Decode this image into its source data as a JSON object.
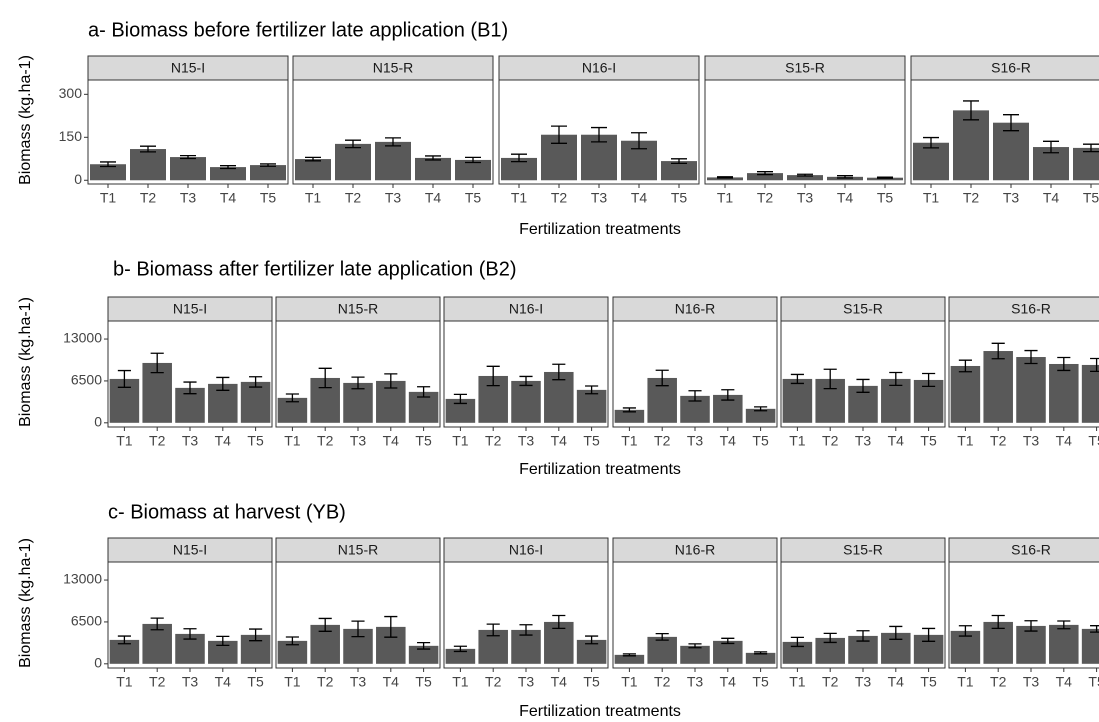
{
  "chart_data": [
    {
      "type": "bar",
      "title": "a- Biomass before fertilizer late application (B1)",
      "y_label": "Biomass (kg.ha-1)",
      "x_label": "Fertilization treatments",
      "color": "#595959",
      "ylim": [
        -13,
        350
      ],
      "yticks": [
        0,
        150,
        300
      ],
      "panels": [
        {
          "name": "N15-I",
          "categories": [
            "T1",
            "T2",
            "T3",
            "T4",
            "T5"
          ],
          "values": [
            56,
            109,
            81,
            46,
            53
          ],
          "errors": [
            8,
            10,
            5,
            5,
            4
          ]
        },
        {
          "name": "N15-R",
          "categories": [
            "T1",
            "T2",
            "T3",
            "T4",
            "T5"
          ],
          "values": [
            74,
            127,
            134,
            78,
            71
          ],
          "errors": [
            6,
            13,
            14,
            7,
            9
          ]
        },
        {
          "name": "N16-I",
          "categories": [
            "T1",
            "T2",
            "T3",
            "T4",
            "T5"
          ],
          "values": [
            78,
            159,
            159,
            138,
            67
          ],
          "errors": [
            13,
            30,
            25,
            28,
            8
          ]
        },
        {
          "name": "S15-R",
          "categories": [
            "T1",
            "T2",
            "T3",
            "T4",
            "T5"
          ],
          "values": [
            10,
            25,
            18,
            12,
            9
          ],
          "errors": [
            2,
            5,
            3,
            4,
            2
          ]
        },
        {
          "name": "S16-R",
          "categories": [
            "T1",
            "T2",
            "T3",
            "T4",
            "T5"
          ],
          "values": [
            131,
            244,
            201,
            116,
            113
          ],
          "errors": [
            18,
            33,
            28,
            20,
            13
          ]
        }
      ]
    },
    {
      "type": "bar",
      "title": "b- Biomass after fertilizer late application (B2)",
      "y_label": "Biomass (kg.ha-1)",
      "x_label": "Fertilization treatments",
      "color": "#595959",
      "ylim": [
        -650,
        15800
      ],
      "yticks": [
        0,
        6500,
        13000
      ],
      "panels": [
        {
          "name": "N15-I",
          "categories": [
            "T1",
            "T2",
            "T3",
            "T4",
            "T5"
          ],
          "values": [
            6810,
            9290,
            5420,
            6040,
            6350
          ],
          "errors": [
            1300,
            1500,
            900,
            1000,
            800
          ]
        },
        {
          "name": "N15-R",
          "categories": [
            "T1",
            "T2",
            "T3",
            "T4",
            "T5"
          ],
          "values": [
            3870,
            6960,
            6190,
            6500,
            4800
          ],
          "errors": [
            600,
            1500,
            900,
            1100,
            800
          ]
        },
        {
          "name": "N16-I",
          "categories": [
            "T1",
            "T2",
            "T3",
            "T4",
            "T5"
          ],
          "values": [
            3710,
            7270,
            6500,
            7890,
            5110
          ],
          "errors": [
            700,
            1500,
            700,
            1200,
            600
          ]
        },
        {
          "name": "N16-R",
          "categories": [
            "T1",
            "T2",
            "T3",
            "T4",
            "T5"
          ],
          "values": [
            2010,
            6960,
            4180,
            4330,
            2170
          ],
          "errors": [
            300,
            1200,
            800,
            800,
            300
          ]
        },
        {
          "name": "S15-R",
          "categories": [
            "T1",
            "T2",
            "T3",
            "T4",
            "T5"
          ],
          "values": [
            6810,
            6810,
            5730,
            6810,
            6650
          ],
          "errors": [
            700,
            1500,
            1000,
            1000,
            1000
          ]
        },
        {
          "name": "S16-R",
          "categories": [
            "T1",
            "T2",
            "T3",
            "T4",
            "T5"
          ],
          "values": [
            8820,
            11140,
            10210,
            9130,
            8980
          ],
          "errors": [
            900,
            1200,
            1000,
            1000,
            1000
          ]
        }
      ]
    },
    {
      "type": "bar",
      "title": "c- Biomass at harvest (YB)",
      "y_label": "Biomass (kg.ha-1)",
      "x_label": "Fertilization treatments",
      "color": "#595959",
      "ylim": [
        -650,
        15800
      ],
      "yticks": [
        0,
        6500,
        13000
      ],
      "panels": [
        {
          "name": "N15-I",
          "categories": [
            "T1",
            "T2",
            "T3",
            "T4",
            "T5"
          ],
          "values": [
            3710,
            6190,
            4640,
            3560,
            4490
          ],
          "errors": [
            600,
            900,
            800,
            700,
            900
          ]
        },
        {
          "name": "N15-R",
          "categories": [
            "T1",
            "T2",
            "T3",
            "T4",
            "T5"
          ],
          "values": [
            3560,
            6040,
            5420,
            5730,
            2790
          ],
          "errors": [
            600,
            1000,
            1200,
            1600,
            500
          ]
        },
        {
          "name": "N16-I",
          "categories": [
            "T1",
            "T2",
            "T3",
            "T4",
            "T5"
          ],
          "values": [
            2320,
            5260,
            5260,
            6500,
            3710
          ],
          "errors": [
            400,
            900,
            800,
            1000,
            600
          ]
        },
        {
          "name": "N16-R",
          "categories": [
            "T1",
            "T2",
            "T3",
            "T4",
            "T5"
          ],
          "values": [
            1390,
            4180,
            2790,
            3560,
            1700
          ],
          "errors": [
            150,
            500,
            300,
            400,
            150
          ]
        },
        {
          "name": "S15-R",
          "categories": [
            "T1",
            "T2",
            "T3",
            "T4",
            "T5"
          ],
          "values": [
            3400,
            4020,
            4330,
            4800,
            4490
          ],
          "errors": [
            700,
            700,
            800,
            1000,
            1000
          ]
        },
        {
          "name": "S16-R",
          "categories": [
            "T1",
            "T2",
            "T3",
            "T4",
            "T5"
          ],
          "values": [
            5110,
            6500,
            5880,
            6040,
            5420
          ],
          "errors": [
            800,
            1000,
            800,
            600,
            500
          ]
        }
      ]
    }
  ]
}
